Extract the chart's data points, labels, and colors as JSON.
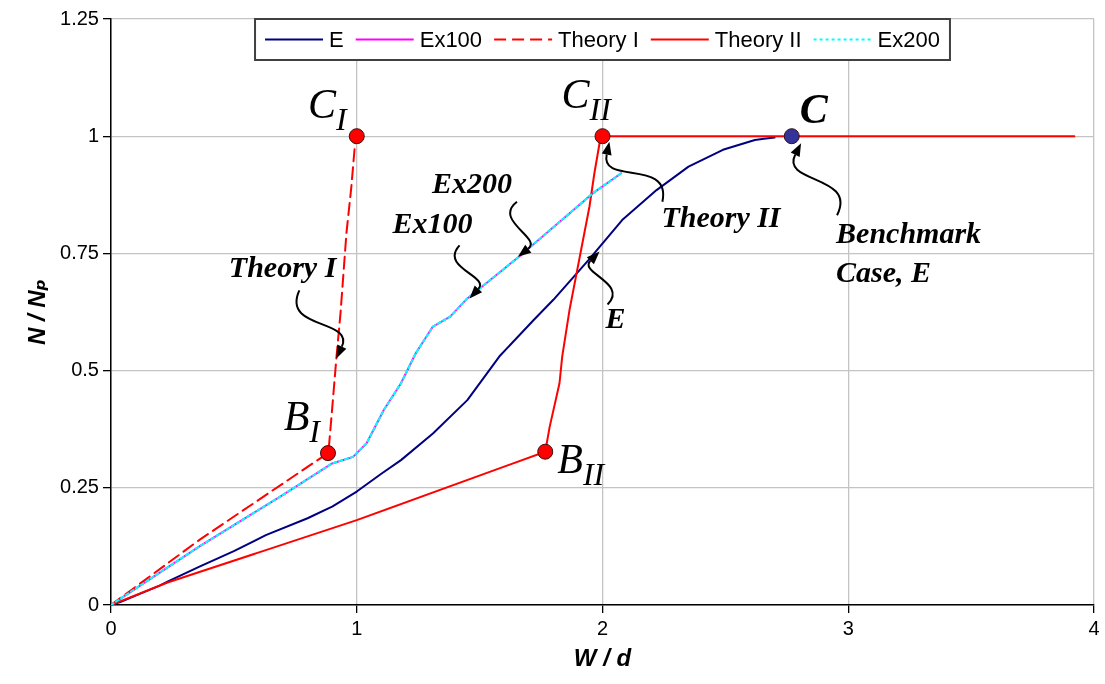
{
  "chart_data": {
    "type": "line",
    "xlabel": "W / d",
    "ylabel": "N / Nₚ",
    "xlim": [
      0,
      4
    ],
    "xticks": [
      0,
      1,
      2,
      3,
      4
    ],
    "ylim": [
      0,
      1.25
    ],
    "yticks": [
      0,
      0.25,
      0.5,
      0.75,
      1,
      1.25
    ],
    "grid": true,
    "legend": "top",
    "series": [
      {
        "name": "E",
        "color": "#000080",
        "line_style": "solid",
        "x": [
          0,
          0.04,
          0.1,
          0.2,
          0.23,
          0.36,
          0.5,
          0.63,
          0.8,
          0.9,
          1.0,
          1.1,
          1.18,
          1.31,
          1.45,
          1.58,
          1.72,
          1.8,
          1.95,
          2.08,
          2.22,
          2.35,
          2.49,
          2.62,
          2.7
        ],
        "values": [
          0,
          0.007,
          0.02,
          0.042,
          0.05,
          0.082,
          0.115,
          0.149,
          0.185,
          0.21,
          0.242,
          0.28,
          0.309,
          0.366,
          0.437,
          0.53,
          0.608,
          0.651,
          0.74,
          0.821,
          0.885,
          0.935,
          0.971,
          0.992,
          0.997
        ]
      },
      {
        "name": "Ex100",
        "color": "#ff00ff",
        "line_style": "solid",
        "x": [
          0,
          0.1,
          0.36,
          0.7,
          0.9,
          0.985,
          1.04,
          1.11,
          1.18,
          1.24,
          1.31,
          1.38,
          1.45,
          1.66,
          1.96,
          2.076
        ],
        "values": [
          0,
          0.035,
          0.125,
          0.235,
          0.302,
          0.316,
          0.345,
          0.416,
          0.473,
          0.537,
          0.594,
          0.615,
          0.654,
          0.743,
          0.878,
          0.921
        ]
      },
      {
        "name": "Theory I",
        "color": "#ff0000",
        "line_style": "dashed",
        "x": [
          0,
          0.36,
          0.883,
          0.888,
          0.904,
          0.917,
          0.934,
          0.958,
          0.978,
          0.992,
          1.0
        ],
        "values": [
          0,
          0.139,
          0.324,
          0.345,
          0.444,
          0.526,
          0.623,
          0.793,
          0.892,
          0.978,
          1.0
        ]
      },
      {
        "name": "Theory II",
        "color": "#ff0000",
        "line_style": "solid",
        "x": [
          0,
          0.23,
          0.63,
          1.0,
          1.767,
          1.785,
          1.825,
          1.836,
          1.866,
          1.947,
          1.967,
          1.988,
          2.0,
          3.92
        ],
        "values": [
          0,
          0.048,
          0.117,
          0.181,
          0.327,
          0.38,
          0.473,
          0.53,
          0.63,
          0.85,
          0.921,
          0.985,
          1.0,
          1.0
        ]
      },
      {
        "name": "Ex200",
        "color": "#00ffff",
        "line_style": "dotted",
        "x": [
          0,
          0.1,
          0.36,
          0.7,
          0.9,
          0.985,
          1.04,
          1.11,
          1.18,
          1.24,
          1.31,
          1.38,
          1.45,
          1.66,
          1.96,
          2.076
        ],
        "values": [
          0,
          0.035,
          0.125,
          0.235,
          0.302,
          0.316,
          0.345,
          0.416,
          0.473,
          0.537,
          0.594,
          0.615,
          0.654,
          0.743,
          0.878,
          0.921
        ]
      },
      {
        "type": "scatter",
        "color": "#ff0000",
        "marker": "circle",
        "x": [
          0.883,
          1.0,
          1.767,
          2.0
        ],
        "values": [
          0.324,
          1.0,
          0.327,
          1.0
        ]
      },
      {
        "type": "scatter",
        "color": "#333399",
        "marker": "circle",
        "x": [
          2.77
        ],
        "values": [
          1.0
        ]
      }
    ],
    "annotations": [
      {
        "text": "C$_{I}$",
        "x": 1.0,
        "y": 1.0
      },
      {
        "text": "B$_{I}$",
        "x": 0.883,
        "y": 0.324
      },
      {
        "text": "C$_{II}$",
        "x": 2.0,
        "y": 1.0
      },
      {
        "text": "B$_{II}$",
        "x": 1.767,
        "y": 0.327
      },
      {
        "text": "C",
        "x": 2.77,
        "y": 1.0
      },
      {
        "text": "Theory I",
        "x": 0.917,
        "y": 0.526
      },
      {
        "text": "Ex100",
        "x": 1.459,
        "y": 0.654
      },
      {
        "text": "Ex200",
        "x": 1.656,
        "y": 0.743
      },
      {
        "text": "Theory II",
        "x": 2.028,
        "y": 0.988
      },
      {
        "text": "E",
        "x": 1.988,
        "y": 0.754
      },
      {
        "text": "Benchmark Case, E",
        "x": 2.808,
        "y": 0.985
      }
    ]
  }
}
